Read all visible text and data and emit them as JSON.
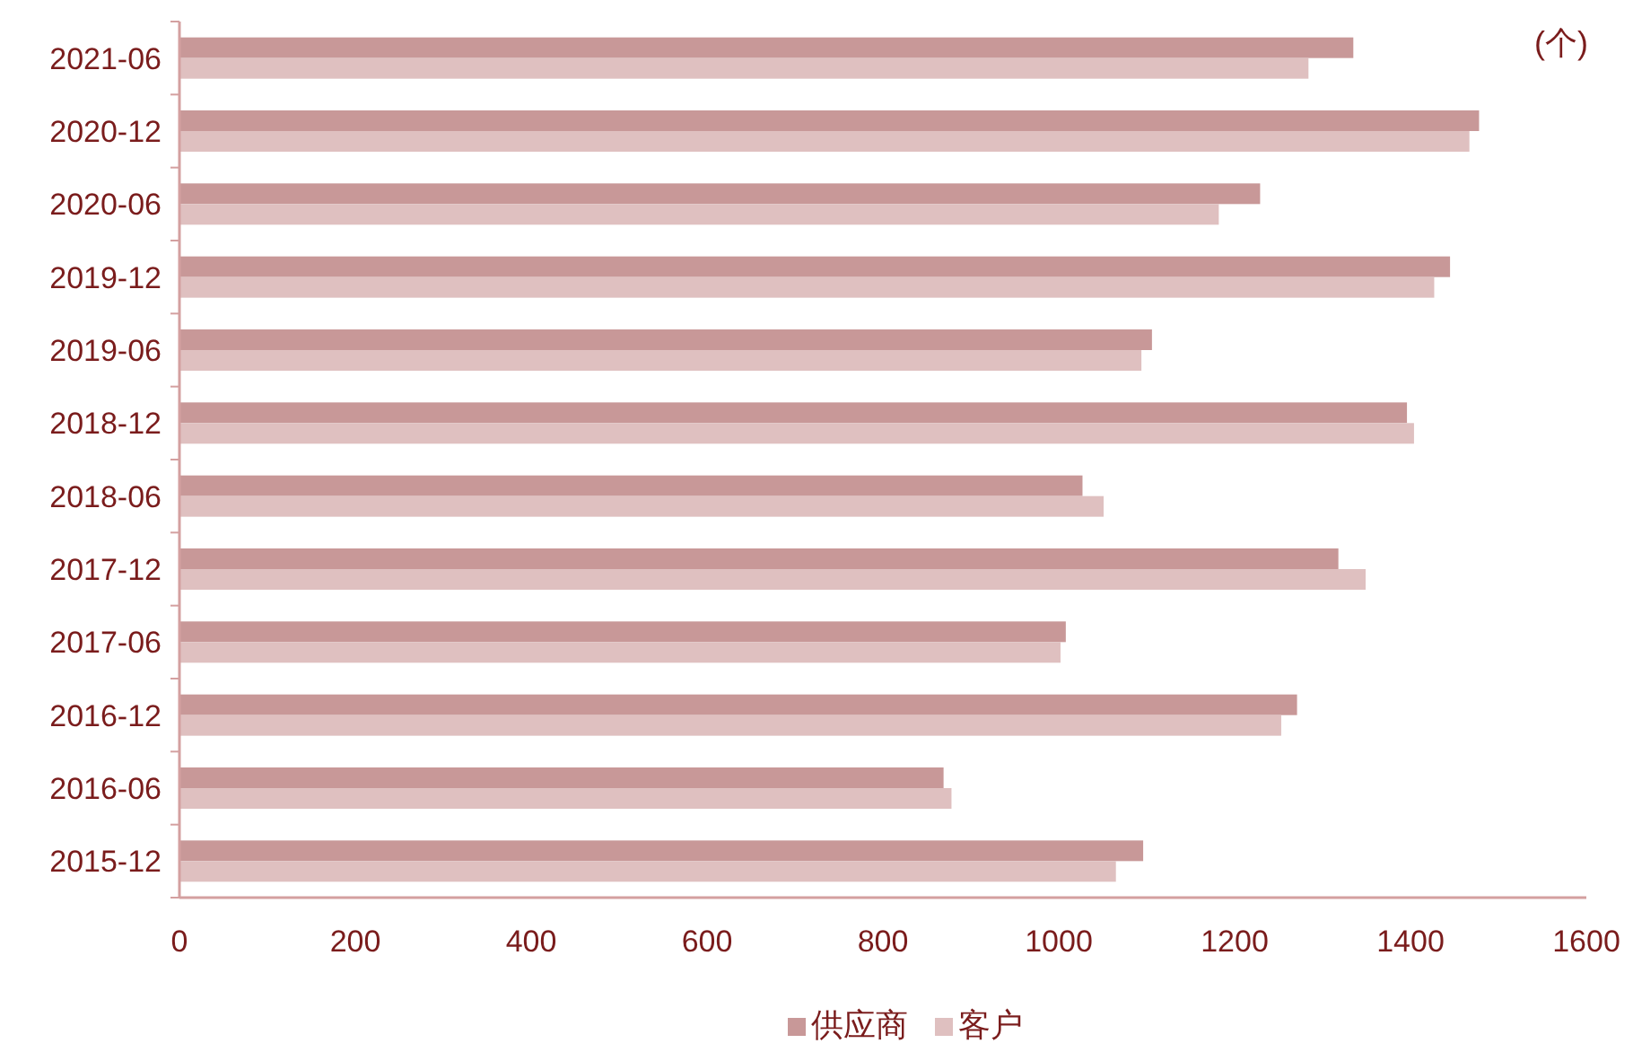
{
  "chart_data": {
    "type": "bar",
    "orientation": "horizontal",
    "categories": [
      "2021-06",
      "2020-12",
      "2020-06",
      "2019-12",
      "2019-06",
      "2018-12",
      "2018-06",
      "2017-12",
      "2017-06",
      "2016-12",
      "2016-06",
      "2015-12"
    ],
    "series": [
      {
        "name": "供应商",
        "color": "#c89898",
        "values": [
          1335,
          1478,
          1229,
          1445,
          1106,
          1396,
          1027,
          1318,
          1008,
          1271,
          869,
          1096
        ]
      },
      {
        "name": "客户",
        "color": "#dfc0c0",
        "values": [
          1284,
          1467,
          1182,
          1427,
          1094,
          1404,
          1051,
          1349,
          1002,
          1253,
          878,
          1065
        ]
      }
    ],
    "xlim": [
      0,
      1600
    ],
    "xticks": [
      0,
      200,
      400,
      600,
      800,
      1000,
      1200,
      1400,
      1600
    ],
    "grid": false,
    "legend": "bottom",
    "annotations": [
      "(个)"
    ]
  }
}
